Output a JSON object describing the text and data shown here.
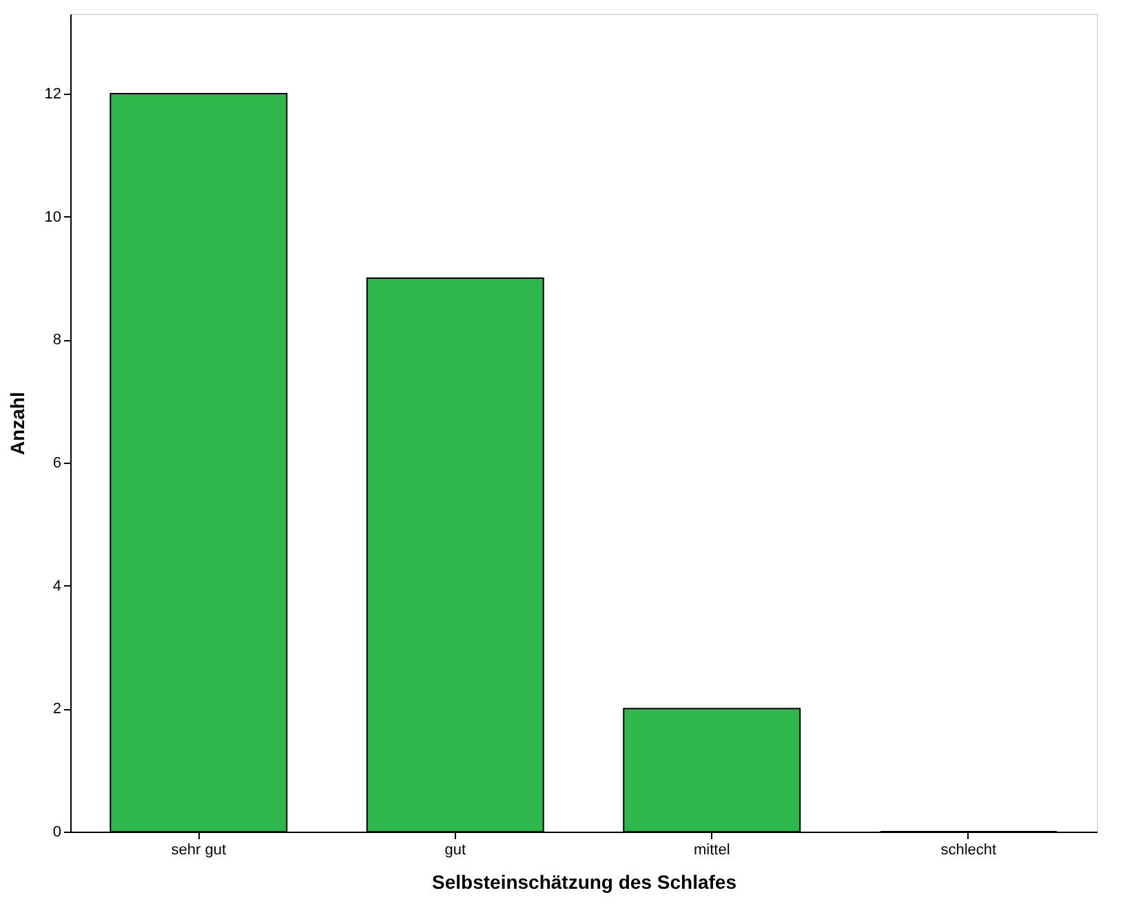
{
  "chart_data": {
    "type": "bar",
    "xlabel": "Selbsteinschätzung des Schlafes",
    "ylabel": "Anzahl",
    "categories": [
      "sehr gut",
      "gut",
      "mittel",
      "schlecht"
    ],
    "values": [
      12,
      9,
      2,
      0
    ],
    "color": "#2eb84b",
    "ylim": [
      0,
      13.3
    ],
    "yticks": [
      0,
      2,
      4,
      6,
      8,
      10,
      12
    ],
    "grid": false
  }
}
